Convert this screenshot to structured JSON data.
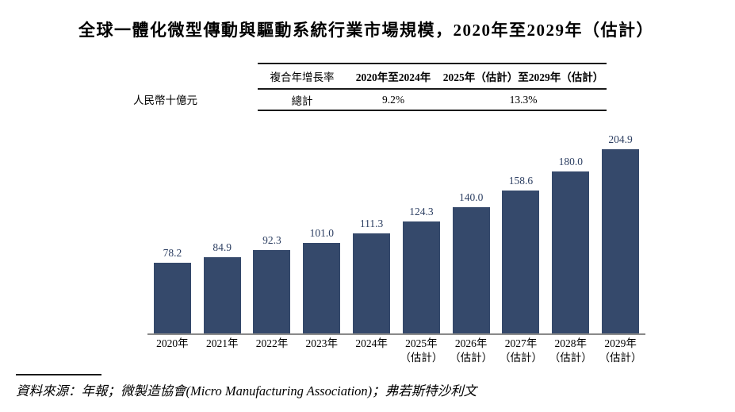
{
  "chart_data": {
    "type": "bar",
    "title": "全球一體化微型傳動與驅動系統行業市場規模，2020年至2029年（估計）",
    "unit_label": "人民幣十億元",
    "categories": [
      "2020年",
      "2021年",
      "2022年",
      "2023年",
      "2024年",
      "2025年\n（估計）",
      "2026年\n（估計）",
      "2027年\n（估計）",
      "2028年\n（估計）",
      "2029年\n（估計）"
    ],
    "values": [
      78.2,
      84.9,
      92.3,
      101.0,
      111.3,
      124.3,
      140.0,
      158.6,
      180.0,
      204.9
    ],
    "value_labels": [
      "78.2",
      "84.9",
      "92.3",
      "101.0",
      "111.3",
      "124.3",
      "140.0",
      "158.6",
      "180.0",
      "204.9"
    ],
    "bar_color": "#35496b",
    "value_label_color": "#2e4063",
    "axis_line_color": "#8a8a8a",
    "ylim": [
      0,
      210
    ],
    "grid": false,
    "legend": "none"
  },
  "cagr_table": {
    "headers": [
      "複合年增長率",
      "2020年至2024年",
      "2025年（估計）至2029年（估計）"
    ],
    "rows": [
      [
        "總計",
        "9.2%",
        "13.3%"
      ]
    ]
  },
  "source_note": "資料來源：年報；微製造協會(Micro Manufacturing Association)；弗若斯特沙利文"
}
